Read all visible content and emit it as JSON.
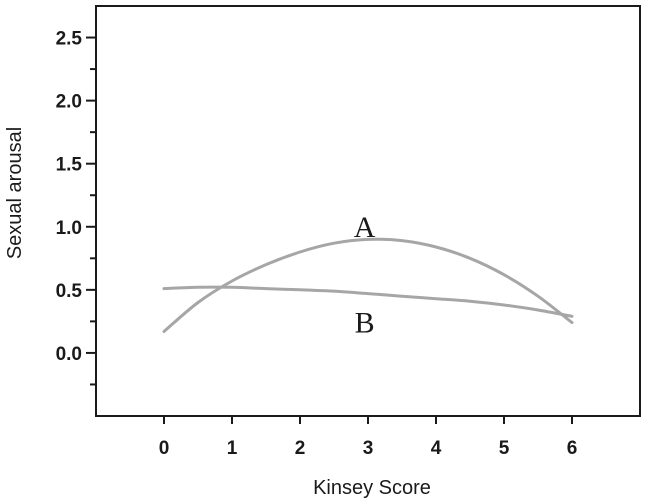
{
  "chart_data": {
    "type": "line",
    "title": "",
    "xlabel": "Kinsey Score",
    "ylabel": "Sexual arousal",
    "xlim": [
      -1,
      7
    ],
    "ylim": [
      -0.5,
      2.75
    ],
    "x_ticks": [
      0,
      1,
      2,
      3,
      4,
      5,
      6
    ],
    "x_tick_labels": [
      "0",
      "1",
      "2",
      "3",
      "4",
      "5",
      "6"
    ],
    "y_ticks": [
      0.0,
      0.5,
      1.0,
      1.5,
      2.0,
      2.5
    ],
    "y_tick_labels": [
      "0.0",
      "0.5",
      "1.0",
      "1.5",
      "2.0",
      "2.5"
    ],
    "grid": false,
    "series": [
      {
        "name": "A",
        "color": "#a6a6a6",
        "x": [
          0,
          0.5,
          1,
          1.5,
          2,
          2.5,
          3,
          3.5,
          4,
          4.5,
          5,
          5.5,
          6
        ],
        "values": [
          0.17,
          0.4,
          0.57,
          0.7,
          0.8,
          0.87,
          0.9,
          0.89,
          0.84,
          0.75,
          0.62,
          0.45,
          0.24
        ]
      },
      {
        "name": "B",
        "color": "#a6a6a6",
        "x": [
          0,
          0.5,
          1,
          1.5,
          2,
          2.5,
          3,
          3.5,
          4,
          4.5,
          5,
          5.5,
          6
        ],
        "values": [
          0.51,
          0.52,
          0.52,
          0.51,
          0.5,
          0.49,
          0.47,
          0.45,
          0.43,
          0.41,
          0.38,
          0.34,
          0.29
        ]
      }
    ],
    "annotations": [
      {
        "text": "A",
        "x": 2.95,
        "y": 1.0
      },
      {
        "text": "B",
        "x": 2.95,
        "y": 0.24
      }
    ]
  }
}
